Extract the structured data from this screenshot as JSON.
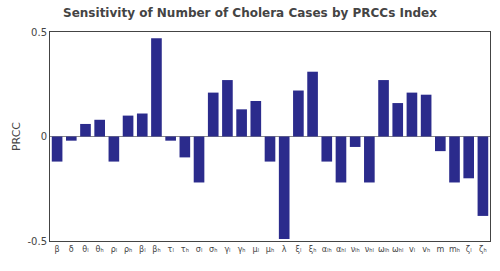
{
  "chart_data": {
    "type": "bar",
    "title": "Sensitivity of Number of Cholera Cases by PRCCs Index",
    "ylabel": "PRCC",
    "categories": [
      "β",
      "δ",
      "θₗ",
      "θₕ",
      "ρₗ",
      "ρₕ",
      "βₗ",
      "βₕ",
      "τₗ",
      "τₕ",
      "σₗ",
      "σₕ",
      "γₗ",
      "γₕ",
      "μₗ",
      "μₕ",
      "λ",
      "ξₗ",
      "ξₕ",
      "αₗₕ",
      "αₕₗ",
      "νₗₕ",
      "νₕₗ",
      "ωₗₕ",
      "ωₕₗ",
      "vₗ",
      "vₕ",
      "m",
      "mₕ",
      "ζₗ",
      "ζₕ"
    ],
    "values": [
      -0.12,
      -0.02,
      0.06,
      0.08,
      -0.12,
      0.1,
      0.11,
      0.47,
      -0.02,
      -0.1,
      -0.22,
      0.21,
      0.27,
      0.13,
      0.17,
      -0.12,
      -0.49,
      0.22,
      0.31,
      -0.12,
      -0.22,
      -0.05,
      -0.22,
      0.27,
      0.16,
      0.21,
      0.2,
      -0.07,
      -0.22,
      -0.2,
      -0.38
    ],
    "color": "#2B2B8C",
    "ylim": [
      -0.5,
      0.5
    ],
    "yticks": [
      -0.5,
      0,
      0.5
    ],
    "grid": false
  }
}
